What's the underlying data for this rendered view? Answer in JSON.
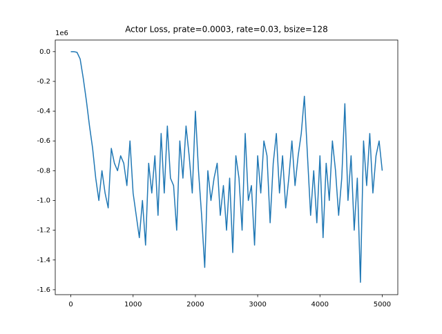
{
  "chart_data": {
    "type": "line",
    "title": "Actor Loss, prate=0.0003, rate=0.03, bsize=128",
    "y_offset_label": "1e6",
    "x": [
      0,
      50,
      100,
      150,
      200,
      250,
      300,
      350,
      400,
      450,
      500,
      550,
      600,
      650,
      700,
      750,
      800,
      850,
      900,
      950,
      1000,
      1050,
      1100,
      1150,
      1200,
      1250,
      1300,
      1350,
      1400,
      1450,
      1500,
      1550,
      1600,
      1650,
      1700,
      1750,
      1800,
      1850,
      1900,
      1950,
      2000,
      2050,
      2100,
      2150,
      2200,
      2250,
      2300,
      2350,
      2400,
      2450,
      2500,
      2550,
      2600,
      2650,
      2700,
      2750,
      2800,
      2850,
      2900,
      2950,
      3000,
      3050,
      3100,
      3150,
      3200,
      3250,
      3300,
      3350,
      3400,
      3450,
      3500,
      3550,
      3600,
      3650,
      3700,
      3750,
      3800,
      3850,
      3900,
      3950,
      4000,
      4050,
      4100,
      4150,
      4200,
      4250,
      4300,
      4350,
      4400,
      4450,
      4500,
      4550,
      4600,
      4650,
      4700,
      4750,
      4800,
      4850,
      4900,
      4950,
      5000
    ],
    "series": [
      {
        "name": "Actor Loss",
        "color": "#1f77b4",
        "values": [
          0,
          0,
          -0.005,
          -0.05,
          -0.18,
          -0.33,
          -0.5,
          -0.65,
          -0.85,
          -1.0,
          -0.8,
          -0.95,
          -1.05,
          -0.65,
          -0.75,
          -0.8,
          -0.7,
          -0.75,
          -0.9,
          -0.6,
          -0.95,
          -1.1,
          -1.25,
          -1.0,
          -1.3,
          -0.75,
          -0.95,
          -0.7,
          -1.1,
          -0.55,
          -0.95,
          -0.5,
          -0.85,
          -0.9,
          -1.2,
          -0.6,
          -0.85,
          -0.5,
          -0.7,
          -0.95,
          -0.4,
          -0.8,
          -1.1,
          -1.45,
          -0.8,
          -1.0,
          -0.85,
          -0.75,
          -1.1,
          -0.9,
          -1.2,
          -0.85,
          -1.35,
          -0.7,
          -0.85,
          -1.2,
          -0.55,
          -1.0,
          -0.9,
          -1.3,
          -0.7,
          -0.95,
          -0.6,
          -0.7,
          -1.15,
          -0.75,
          -0.55,
          -0.95,
          -0.7,
          -1.05,
          -0.85,
          -0.6,
          -0.9,
          -0.7,
          -0.55,
          -0.3,
          -0.7,
          -1.1,
          -0.8,
          -1.15,
          -0.7,
          -1.25,
          -0.75,
          -1.0,
          -0.6,
          -0.8,
          -1.1,
          -0.85,
          -0.35,
          -1.0,
          -0.7,
          -1.2,
          -0.85,
          -1.55,
          -0.6,
          -0.9,
          -0.55,
          -0.95,
          -0.7,
          -0.6,
          -0.8
        ]
      }
    ],
    "xlim": [
      -250,
      5250
    ],
    "ylim": [
      -1.633,
      0.078
    ],
    "xticks": [
      0,
      1000,
      2000,
      3000,
      4000,
      5000
    ],
    "yticks": [
      {
        "value": 0,
        "label": "0.0"
      },
      -0.2,
      -0.4,
      -0.6,
      -0.8,
      {
        "value": -1,
        "label": "-1.0"
      },
      -1.2,
      -1.4,
      -1.6
    ]
  }
}
